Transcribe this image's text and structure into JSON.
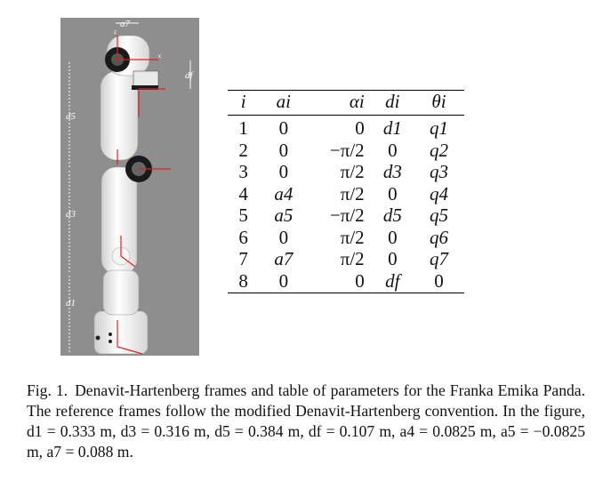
{
  "figure": {
    "dimension_labels": {
      "top": "a7",
      "right": "df",
      "left_upper": "d5",
      "left_middle": "d3",
      "left_lower": "d1"
    },
    "axis_labels": {
      "z": "z",
      "x": "x"
    }
  },
  "table": {
    "headers": [
      "i",
      "ai",
      "αi",
      "di",
      "θi"
    ],
    "rows": [
      [
        "1",
        "0",
        "0",
        "d1",
        "q1"
      ],
      [
        "2",
        "0",
        "−π/2",
        "0",
        "q2"
      ],
      [
        "3",
        "0",
        "π/2",
        "d3",
        "q3"
      ],
      [
        "4",
        "a4",
        "π/2",
        "0",
        "q4"
      ],
      [
        "5",
        "a5",
        "−π/2",
        "d5",
        "q5"
      ],
      [
        "6",
        "0",
        "π/2",
        "0",
        "q6"
      ],
      [
        "7",
        "a7",
        "π/2",
        "0",
        "q7"
      ],
      [
        "8",
        "0",
        "0",
        "df",
        "0"
      ]
    ]
  },
  "caption": {
    "label": "Fig. 1.",
    "text": "Denavit-Hartenberg frames and table of parameters for the Franka Emika Panda. The reference frames follow the modified Denavit-Hartenberg convention. In the figure, d1 = 0.333 m, d3 = 0.316 m, d5 = 0.384 m, df = 0.107 m, a4 = 0.0825 m, a5 = −0.0825 m, a7 = 0.088 m."
  },
  "colors": {
    "background": "#8e8e8e",
    "robot": "#f2f2f2",
    "joint": "#1a1a1a",
    "axis": "#e02020"
  }
}
